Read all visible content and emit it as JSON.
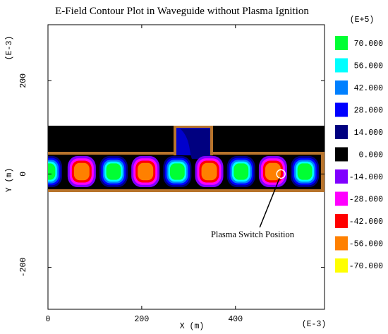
{
  "chart_data": {
    "type": "heatmap",
    "title": "E-Field Contour Plot in Waveguide without Plasma Ignition",
    "xlabel": "X (m)",
    "ylabel": "Y (m)",
    "x_multiplier": "(E-3)",
    "y_multiplier": "(E-3)",
    "colorbar_multiplier": "(E+5)",
    "xlim": [
      0,
      590
    ],
    "ylim": [
      -290,
      320
    ],
    "x_ticks": [
      0,
      200,
      400
    ],
    "y_ticks": [
      -200,
      0,
      200
    ],
    "legend_placement": "right",
    "colorbar": [
      {
        "value": "70.000",
        "color": "#00ff33"
      },
      {
        "value": "56.000",
        "color": "#00ffff"
      },
      {
        "value": "42.000",
        "color": "#0080ff"
      },
      {
        "value": "28.000",
        "color": "#0000ff"
      },
      {
        "value": "14.000",
        "color": "#000080"
      },
      {
        "value": "0.000",
        "color": "#000000"
      },
      {
        "value": "-14.000",
        "color": "#8000ff"
      },
      {
        "value": "-28.000",
        "color": "#ff00ff"
      },
      {
        "value": "-42.000",
        "color": "#ff0000"
      },
      {
        "value": "-56.000",
        "color": "#ff8000"
      },
      {
        "value": "-70.000",
        "color": "#ffff00"
      }
    ],
    "field_maxima": [
      {
        "x": 0,
        "sign": "+"
      },
      {
        "x": 72,
        "sign": "-"
      },
      {
        "x": 140,
        "sign": "+"
      },
      {
        "x": 208,
        "sign": "-"
      },
      {
        "x": 276,
        "sign": "+"
      },
      {
        "x": 344,
        "sign": "-"
      },
      {
        "x": 412,
        "sign": "+"
      },
      {
        "x": 480,
        "sign": "-"
      },
      {
        "x": 548,
        "sign": "+"
      }
    ],
    "annotation": {
      "text": "Plasma Switch Position",
      "x": 497,
      "y": 0
    }
  }
}
